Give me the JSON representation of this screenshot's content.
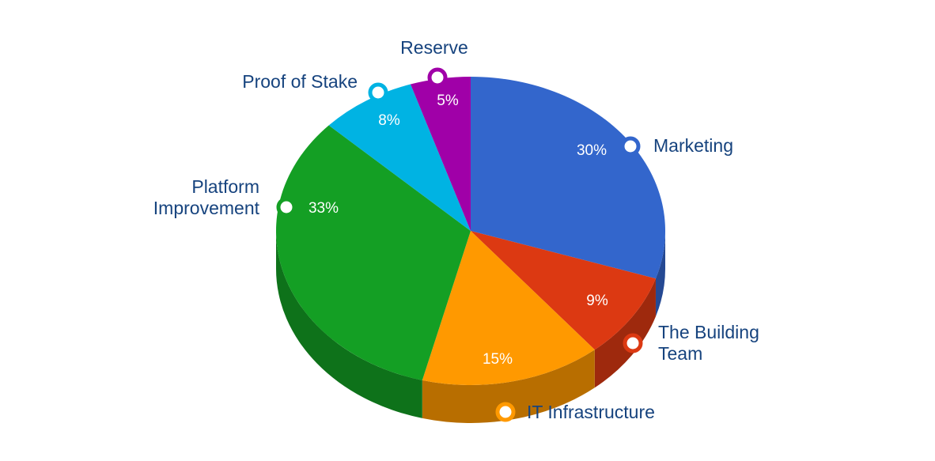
{
  "chart_data": {
    "type": "pie",
    "style": "3d",
    "title": "",
    "labels": [
      "Marketing",
      "The Building Team",
      "IT Infrastructure",
      "Platform Improvement",
      "Proof of Stake",
      "Reserve"
    ],
    "values": [
      30,
      9,
      15,
      33,
      8,
      5
    ],
    "unit": "%",
    "percent_labels": [
      "30%",
      "9%",
      "15%",
      "33%",
      "8%",
      "5%"
    ],
    "colors": [
      "#3366CC",
      "#DC3912",
      "#FF9900",
      "#149F24",
      "#00B3E3",
      "#A000A8"
    ],
    "label_text_color": "#16437E",
    "percent_text_color": "#FFFFFF",
    "legend_position": "callout-rings-around-slices",
    "start_angle_deg": 0,
    "direction": "clockwise",
    "total": 100
  }
}
